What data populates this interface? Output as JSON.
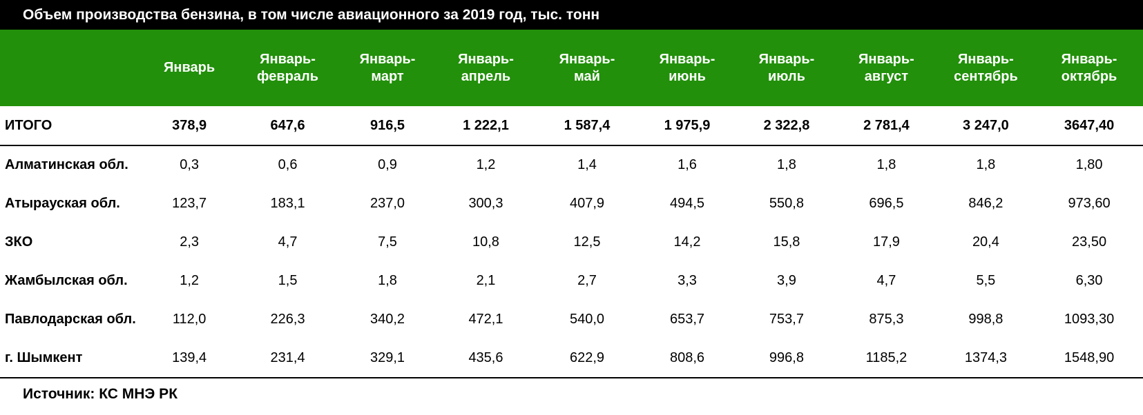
{
  "title": "Объем производства бензина, в том числе авиационного за 2019 год, тыс. тонн",
  "source": "Источник: КС МНЭ РК",
  "colors": {
    "title_bg": "#000000",
    "header_bg": "#22900a",
    "header_text": "#ffffff"
  },
  "chart_data": {
    "type": "table",
    "title": "Объем производства бензина, в том числе авиационного за 2019 год, тыс. тонн",
    "columns": [
      [
        "Январь"
      ],
      [
        "Январь-",
        "февраль"
      ],
      [
        "Январь-",
        "март"
      ],
      [
        "Январь-",
        "апрель"
      ],
      [
        "Январь-",
        "май"
      ],
      [
        "Январь-",
        "июнь"
      ],
      [
        "Январь-",
        "июль"
      ],
      [
        "Январь-",
        "август"
      ],
      [
        "Январь-",
        "сентябрь"
      ],
      [
        "Январь-",
        "октябрь"
      ]
    ],
    "rows": [
      {
        "label": "ИТОГО",
        "values": [
          "378,9",
          "647,6",
          "916,5",
          "1 222,1",
          "1 587,4",
          "1 975,9",
          "2 322,8",
          "2 781,4",
          "3 247,0",
          "3647,40"
        ]
      },
      {
        "label": "Алматинская обл.",
        "values": [
          "0,3",
          "0,6",
          "0,9",
          "1,2",
          "1,4",
          "1,6",
          "1,8",
          "1,8",
          "1,8",
          "1,80"
        ]
      },
      {
        "label": "Атырауская обл.",
        "values": [
          "123,7",
          "183,1",
          "237,0",
          "300,3",
          "407,9",
          "494,5",
          "550,8",
          "696,5",
          "846,2",
          "973,60"
        ]
      },
      {
        "label": "ЗКО",
        "values": [
          "2,3",
          "4,7",
          "7,5",
          "10,8",
          "12,5",
          "14,2",
          "15,8",
          "17,9",
          "20,4",
          "23,50"
        ]
      },
      {
        "label": "Жамбылская обл.",
        "values": [
          "1,2",
          "1,5",
          "1,8",
          "2,1",
          "2,7",
          "3,3",
          "3,9",
          "4,7",
          "5,5",
          "6,30"
        ]
      },
      {
        "label": "Павлодарская обл.",
        "values": [
          "112,0",
          "226,3",
          "340,2",
          "472,1",
          "540,0",
          "653,7",
          "753,7",
          "875,3",
          "998,8",
          "1093,30"
        ]
      },
      {
        "label": "г. Шымкент",
        "values": [
          "139,4",
          "231,4",
          "329,1",
          "435,6",
          "622,9",
          "808,6",
          "996,8",
          "1185,2",
          "1374,3",
          "1548,90"
        ]
      }
    ]
  }
}
